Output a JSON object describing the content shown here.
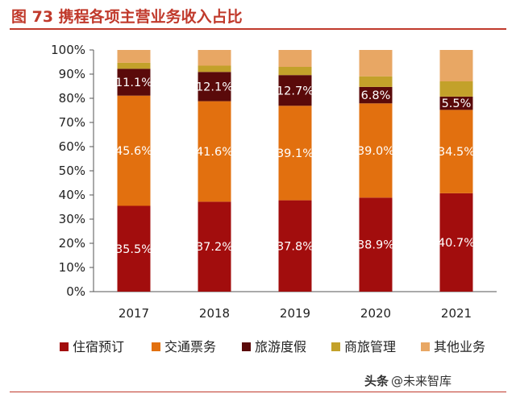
{
  "title": "图 73 携程各项主营业务收入占比",
  "watermark": {
    "logo_text": "头条",
    "handle": "@未来智库"
  },
  "chart_data": {
    "type": "bar",
    "stacked": true,
    "categories": [
      "2017",
      "2018",
      "2019",
      "2020",
      "2021"
    ],
    "ylim": [
      0,
      100
    ],
    "yticks": [
      "0%",
      "10%",
      "20%",
      "30%",
      "40%",
      "50%",
      "60%",
      "70%",
      "80%",
      "90%",
      "100%"
    ],
    "grid": false,
    "legend_position": "bottom",
    "series": [
      {
        "name": "住宿预订",
        "color": "#a20d0d",
        "values": [
          35.5,
          37.2,
          37.8,
          38.9,
          40.7
        ],
        "labels": [
          "35.5%",
          "37.2%",
          "37.8%",
          "38.9%",
          "40.7%"
        ]
      },
      {
        "name": "交通票务",
        "color": "#e2700f",
        "values": [
          45.6,
          41.6,
          39.1,
          39.0,
          34.5
        ],
        "labels": [
          "45.6%",
          "41.6%",
          "39.1%",
          "39.0%",
          "34.5%"
        ]
      },
      {
        "name": "旅游度假",
        "color": "#5a0a0a",
        "values": [
          11.1,
          12.1,
          12.7,
          6.8,
          5.5
        ],
        "labels": [
          "11.1%",
          "12.1%",
          "12.7%",
          "6.8%",
          "5.5%"
        ]
      },
      {
        "name": "商旅管理",
        "color": "#c3a12a",
        "values": [
          2.5,
          2.6,
          3.4,
          4.4,
          6.3
        ],
        "labels": []
      },
      {
        "name": "其他业务",
        "color": "#e8a764",
        "values": [
          5.3,
          6.5,
          7.0,
          10.9,
          13.0
        ],
        "labels": []
      }
    ]
  }
}
